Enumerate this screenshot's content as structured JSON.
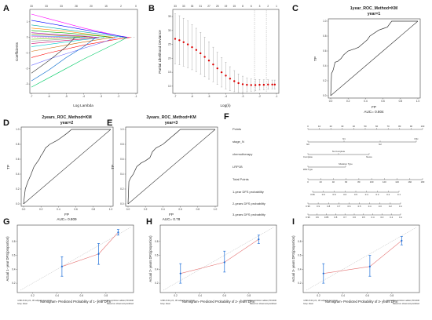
{
  "chart_data": [
    {
      "panel": "A",
      "type": "line",
      "top_tick_labels": [
        "33",
        "33",
        "33",
        "28",
        "20",
        "15",
        "2",
        "0"
      ],
      "x_tick_labels": [
        "-7",
        "-6",
        "-5",
        "-4",
        "-3",
        "-2",
        "-1"
      ],
      "y_tick_labels": [
        "1",
        "0",
        "-1",
        "-2",
        "-3"
      ],
      "xlabel": "Log Lambda",
      "ylabel": "Coefficients",
      "xlim": [
        -7,
        -1
      ],
      "ylim": [
        -3.5,
        1.7
      ],
      "paths": [
        {
          "color": "#ff00ff",
          "x": [
            -7,
            -6,
            -5,
            -4,
            -3,
            -2,
            -1.4
          ],
          "y": [
            1.5,
            1.2,
            0.9,
            0.6,
            0.35,
            0.1,
            0
          ]
        },
        {
          "color": "#0000ff",
          "x": [
            -7,
            -6,
            -5,
            -4,
            -3,
            -2,
            -1.5
          ],
          "y": [
            1.1,
            0.9,
            0.7,
            0.5,
            0.3,
            0.1,
            0
          ]
        },
        {
          "color": "#00aaaa",
          "x": [
            -7,
            -6,
            -5,
            -4,
            -3,
            -2,
            -1.6
          ],
          "y": [
            0.8,
            0.65,
            0.5,
            0.35,
            0.2,
            0.05,
            0
          ]
        },
        {
          "color": "#ff8800",
          "x": [
            -7,
            -6,
            -5,
            -4,
            -3,
            -2.2
          ],
          "y": [
            0.6,
            0.5,
            0.4,
            0.25,
            0.1,
            0
          ]
        },
        {
          "color": "#00aa00",
          "x": [
            -7,
            -6,
            -5,
            -4,
            -3,
            -2.4
          ],
          "y": [
            0.45,
            0.35,
            0.28,
            0.18,
            0.08,
            0
          ]
        },
        {
          "color": "#aa00aa",
          "x": [
            -7,
            -6,
            -5,
            -4,
            -3.2
          ],
          "y": [
            0.3,
            0.22,
            0.15,
            0.08,
            0
          ]
        },
        {
          "color": "#888800",
          "x": [
            -7,
            -6,
            -5,
            -4,
            -3.5
          ],
          "y": [
            0.2,
            0.15,
            0.1,
            0.05,
            0
          ]
        },
        {
          "color": "#ff0000",
          "x": [
            -7,
            -6,
            -5,
            -4,
            -3,
            -2,
            -1.3
          ],
          "y": [
            -1.3,
            -1.0,
            -0.75,
            -0.5,
            -0.3,
            -0.1,
            0
          ]
        },
        {
          "color": "#00cc66",
          "x": [
            -7,
            -6,
            -5,
            -4,
            -3,
            -2,
            -1.5
          ],
          "y": [
            -3.2,
            -2.6,
            -2.0,
            -1.4,
            -0.85,
            -0.3,
            0
          ]
        },
        {
          "color": "#6666ff",
          "x": [
            -7,
            -6,
            -5,
            -4,
            -3,
            -2.1
          ],
          "y": [
            -1.8,
            -1.4,
            -1.05,
            -0.7,
            -0.35,
            0
          ]
        },
        {
          "color": "#cc6600",
          "x": [
            -7,
            -6,
            -5,
            -4,
            -3,
            -2.3
          ],
          "y": [
            -0.9,
            -0.7,
            -0.5,
            -0.3,
            -0.12,
            0
          ]
        },
        {
          "color": "#00cccc",
          "x": [
            -7,
            -6,
            -5,
            -4,
            -2.8
          ],
          "y": [
            -0.6,
            -0.45,
            -0.3,
            -0.15,
            0
          ]
        },
        {
          "color": "#cc0066",
          "x": [
            -7,
            -6,
            -5,
            -4,
            -3.1
          ],
          "y": [
            -0.4,
            -0.3,
            -0.2,
            -0.1,
            0
          ]
        },
        {
          "color": "#999999",
          "x": [
            -7,
            -6,
            -5,
            -3.8
          ],
          "y": [
            -0.25,
            -0.18,
            -0.1,
            0
          ]
        },
        {
          "color": "#3399ff",
          "x": [
            -7,
            -6,
            -5,
            -3.9
          ],
          "y": [
            0.1,
            0.07,
            0.04,
            0
          ]
        },
        {
          "color": "#66cc00",
          "x": [
            -7,
            -6,
            -5,
            -4.2
          ],
          "y": [
            -0.12,
            -0.08,
            -0.04,
            0
          ]
        },
        {
          "color": "#ff66cc",
          "x": [
            -7,
            -6,
            -4.8
          ],
          "y": [
            0.05,
            0.03,
            0
          ]
        },
        {
          "color": "#333333",
          "x": [
            -7,
            -6,
            -5,
            -4.5
          ],
          "y": [
            -2.3,
            -1.5,
            -0.6,
            0
          ]
        },
        {
          "color": "#0066cc",
          "x": [
            -7,
            -6,
            -5,
            -4,
            -3.3
          ],
          "y": [
            -2.8,
            -2.1,
            -1.3,
            -0.6,
            0
          ]
        }
      ]
    },
    {
      "panel": "B",
      "type": "scatter",
      "top_tick_labels": [
        "33",
        "33",
        "33",
        "31",
        "27",
        "25",
        "19",
        "15",
        "8",
        "6",
        "3",
        "2",
        "1"
      ],
      "x_tick_labels": [
        "-7",
        "-6",
        "-5",
        "-4",
        "-3",
        "-2",
        "-1"
      ],
      "y_tick_labels": [
        "10",
        "15",
        "20",
        "25",
        "30",
        "35"
      ],
      "xlabel": "Log(λ)",
      "ylabel": "Partial Likelihood Deviance",
      "xlim": [
        -7,
        -1
      ],
      "ylim": [
        8,
        37
      ],
      "x": [
        -7,
        -6.75,
        -6.5,
        -6.25,
        -6,
        -5.75,
        -5.5,
        -5.25,
        -5,
        -4.75,
        -4.5,
        -4.25,
        -4,
        -3.75,
        -3.5,
        -3.25,
        -3,
        -2.75,
        -2.5,
        -2.25,
        -2,
        -1.75,
        -1.5,
        -1.25,
        -1.1
      ],
      "y": [
        27,
        26.5,
        25.8,
        25,
        24,
        23,
        21.8,
        20.5,
        19.2,
        17.8,
        16.4,
        15,
        13.8,
        12.7,
        11.8,
        11.1,
        10.7,
        10.5,
        10.4,
        10.4,
        10.5,
        10.5,
        10.6,
        10.6,
        10.6
      ],
      "err": [
        9,
        8.8,
        8.6,
        8.4,
        8.1,
        7.8,
        7.5,
        7.1,
        6.7,
        6.2,
        5.8,
        5.3,
        4.8,
        4.3,
        3.8,
        3.3,
        2.9,
        2.5,
        2.2,
        2,
        1.9,
        1.8,
        1.7,
        1.6,
        1.6
      ],
      "vlines": [
        -2.3,
        -1.6
      ]
    },
    {
      "panel": "C",
      "type": "line",
      "title": "1year_ROC_Method=KM",
      "subtitle": "year=1",
      "xlabel": "FP",
      "ylabel": "TP",
      "auc_label": "AUC= 0.804",
      "x_tick_labels": [
        "0.0",
        "0.2",
        "0.4",
        "0.6",
        "0.8",
        "1.0"
      ],
      "y_tick_labels": [
        "0.0",
        "0.2",
        "0.4",
        "0.6",
        "0.8",
        "1.0"
      ],
      "xlim": [
        0,
        1
      ],
      "ylim": [
        0,
        1
      ],
      "x": [
        0,
        0.01,
        0.02,
        0.03,
        0.05,
        0.08,
        0.12,
        0.15,
        0.2,
        0.28,
        0.32,
        0.35,
        0.42,
        0.45,
        0.55,
        0.6,
        0.65,
        0.7,
        0.8,
        0.9,
        1.0
      ],
      "y": [
        0,
        0.3,
        0.32,
        0.35,
        0.45,
        0.46,
        0.5,
        0.55,
        0.6,
        0.63,
        0.65,
        0.68,
        0.75,
        0.8,
        0.88,
        0.9,
        0.92,
        1.0,
        1.0,
        1.0,
        1.0
      ]
    },
    {
      "panel": "D",
      "type": "line",
      "title": "2years_ROC_Method=KM",
      "subtitle": "year=2",
      "xlabel": "FP",
      "ylabel": "TP",
      "auc_label": "AUC= 0.809",
      "x_tick_labels": [
        "0.0",
        "0.2",
        "0.4",
        "0.6",
        "0.8",
        "1.0"
      ],
      "y_tick_labels": [
        "0.0",
        "0.2",
        "0.4",
        "0.6",
        "0.8",
        "1.0"
      ],
      "xlim": [
        0,
        1
      ],
      "ylim": [
        0,
        1
      ],
      "x": [
        0,
        0.02,
        0.05,
        0.08,
        0.12,
        0.15,
        0.18,
        0.2,
        0.22,
        0.25,
        0.3,
        0.38,
        0.42,
        0.5,
        0.55,
        0.6,
        1.0
      ],
      "y": [
        0,
        0.2,
        0.3,
        0.38,
        0.5,
        0.55,
        0.6,
        0.65,
        0.68,
        0.75,
        0.8,
        0.85,
        0.88,
        0.95,
        1.0,
        1.0,
        1.0
      ]
    },
    {
      "panel": "E",
      "type": "line",
      "title": "3years_ROC_Method=KM",
      "subtitle": "year=3",
      "xlabel": "FP",
      "ylabel": "TP",
      "auc_label": "AUC= 0.78",
      "x_tick_labels": [
        "0.0",
        "0.2",
        "0.4",
        "0.6",
        "0.8",
        "1.0"
      ],
      "y_tick_labels": [
        "0.0",
        "0.2",
        "0.4",
        "0.6",
        "0.8",
        "1.0"
      ],
      "xlim": [
        0,
        1
      ],
      "ylim": [
        0,
        1
      ],
      "x": [
        0,
        0.01,
        0.03,
        0.06,
        0.1,
        0.15,
        0.2,
        0.25,
        0.28,
        0.32,
        0.4,
        0.45,
        0.5,
        0.55,
        0.6,
        0.62,
        1.0
      ],
      "y": [
        0,
        0.3,
        0.35,
        0.4,
        0.5,
        0.55,
        0.58,
        0.62,
        0.7,
        0.75,
        0.8,
        0.85,
        0.9,
        0.95,
        1.0,
        1.0,
        1.0
      ]
    },
    {
      "panel": "F",
      "type": "table",
      "rows": [
        {
          "label": "Points",
          "ticks": [
            "0",
            "10",
            "20",
            "30",
            "40",
            "50",
            "60",
            "70",
            "80",
            "90",
            "100"
          ]
        },
        {
          "label": "stage_N",
          "ticks": [
            "N0",
            "N1",
            "N2",
            "N3c"
          ]
        },
        {
          "label": "chemotherapy",
          "ticks": [
            "Complete",
            "No Complete",
            "Neore"
          ]
        },
        {
          "label": "LRP1B",
          "ticks": [
            "Wild Type",
            "Mutation Type"
          ]
        },
        {
          "label": "Total Points",
          "ticks": [
            "0",
            "20",
            "40",
            "60",
            "80",
            "100",
            "120",
            "140",
            "160",
            "180"
          ]
        },
        {
          "label": "1-year DFS probability",
          "ticks": [
            "0.95",
            "0.9",
            "0.8",
            "0.6",
            "0.5",
            "0.4",
            "0.3",
            "0.2",
            "0.1"
          ]
        },
        {
          "label": "2-years DFS probability",
          "ticks": [
            "0.95",
            "0.9",
            "0.8",
            "0.7",
            "0.6",
            "0.5",
            "0.4",
            "0.3",
            "0.2",
            "0.1"
          ]
        },
        {
          "label": "3-years DFS probability",
          "ticks": [
            "0.95",
            "0.9",
            "0.85",
            "0.8",
            "0.7",
            "0.6",
            "0.5",
            "0.4",
            "0.3",
            "0.2",
            "0.1"
          ]
        }
      ]
    },
    {
      "panel": "G",
      "type": "scatter",
      "xlabel": "Nomogram- Predicted Probability of 1- year DFS",
      "ylabel": "Actual 1- year DFS(proportion)",
      "footnote_left": "n=80 d=44 p=1, 30 subjects per group",
      "footnote_left2": "Gray: ideal",
      "footnote_right": "X - resampling optimism added, B=1000",
      "footnote_right2": "Based on observed-predicted",
      "x_tick_labels": [
        "0.2",
        "0.4",
        "0.6",
        "0.8"
      ],
      "y_tick_labels": [
        "0.2",
        "0.4",
        "0.6",
        "0.8"
      ],
      "xlim": [
        0.1,
        1.0
      ],
      "ylim": [
        0.1,
        1.0
      ],
      "x": [
        0.44,
        0.74,
        0.9
      ],
      "y": [
        0.44,
        0.62,
        0.93
      ],
      "lower": [
        0.3,
        0.47,
        0.89
      ],
      "upper": [
        0.58,
        0.77,
        0.97
      ]
    },
    {
      "panel": "H",
      "type": "scatter",
      "xlabel": "Nomogram- Predicted Probability of 2- years DFS",
      "ylabel": "Actual 2- years DFS(proportion)",
      "footnote_left": "n=80 d=44 p=1, 30 subjects per group",
      "footnote_left2": "Gray: ideal",
      "footnote_right": "X - resampling optimism added, B=1000",
      "footnote_right2": "Based on observed-predicted",
      "x_tick_labels": [
        "0.2",
        "0.4",
        "0.6",
        "0.8"
      ],
      "y_tick_labels": [
        "0.2",
        "0.4",
        "0.6",
        "0.8"
      ],
      "xlim": [
        0.1,
        1.0
      ],
      "ylim": [
        0.1,
        1.0
      ],
      "x": [
        0.24,
        0.6,
        0.88
      ],
      "y": [
        0.34,
        0.5,
        0.83
      ],
      "lower": [
        0.2,
        0.36,
        0.77
      ],
      "upper": [
        0.48,
        0.66,
        0.89
      ]
    },
    {
      "panel": "I",
      "type": "scatter",
      "xlabel": "Nomogram- Predicted Probability of 3- years DFS",
      "ylabel": "Actual 3- years DFS(proportion)",
      "footnote_left": "n=80 d=44 p=1, 30 subjects per group",
      "footnote_left2": "Gray: ideal",
      "footnote_right": "X - resampling optimism added, B=1000",
      "footnote_right2": "Based on observed-predicted",
      "x_tick_labels": [
        "0.2",
        "0.4",
        "0.6",
        "0.8"
      ],
      "y_tick_labels": [
        "0.2",
        "0.4",
        "0.6",
        "0.8"
      ],
      "xlim": [
        0.1,
        1.0
      ],
      "ylim": [
        0.1,
        1.0
      ],
      "x": [
        0.24,
        0.62,
        0.88
      ],
      "y": [
        0.34,
        0.44,
        0.81
      ],
      "lower": [
        0.2,
        0.3,
        0.75
      ],
      "upper": [
        0.48,
        0.6,
        0.87
      ]
    }
  ],
  "colors": {
    "cv_points": "#dd0000",
    "cv_errorbars": "#999999",
    "roc_line": "#333333",
    "calib_line": "#e57373",
    "calib_points": "#1e6fd9",
    "ideal_line": "#bbbbbb"
  }
}
